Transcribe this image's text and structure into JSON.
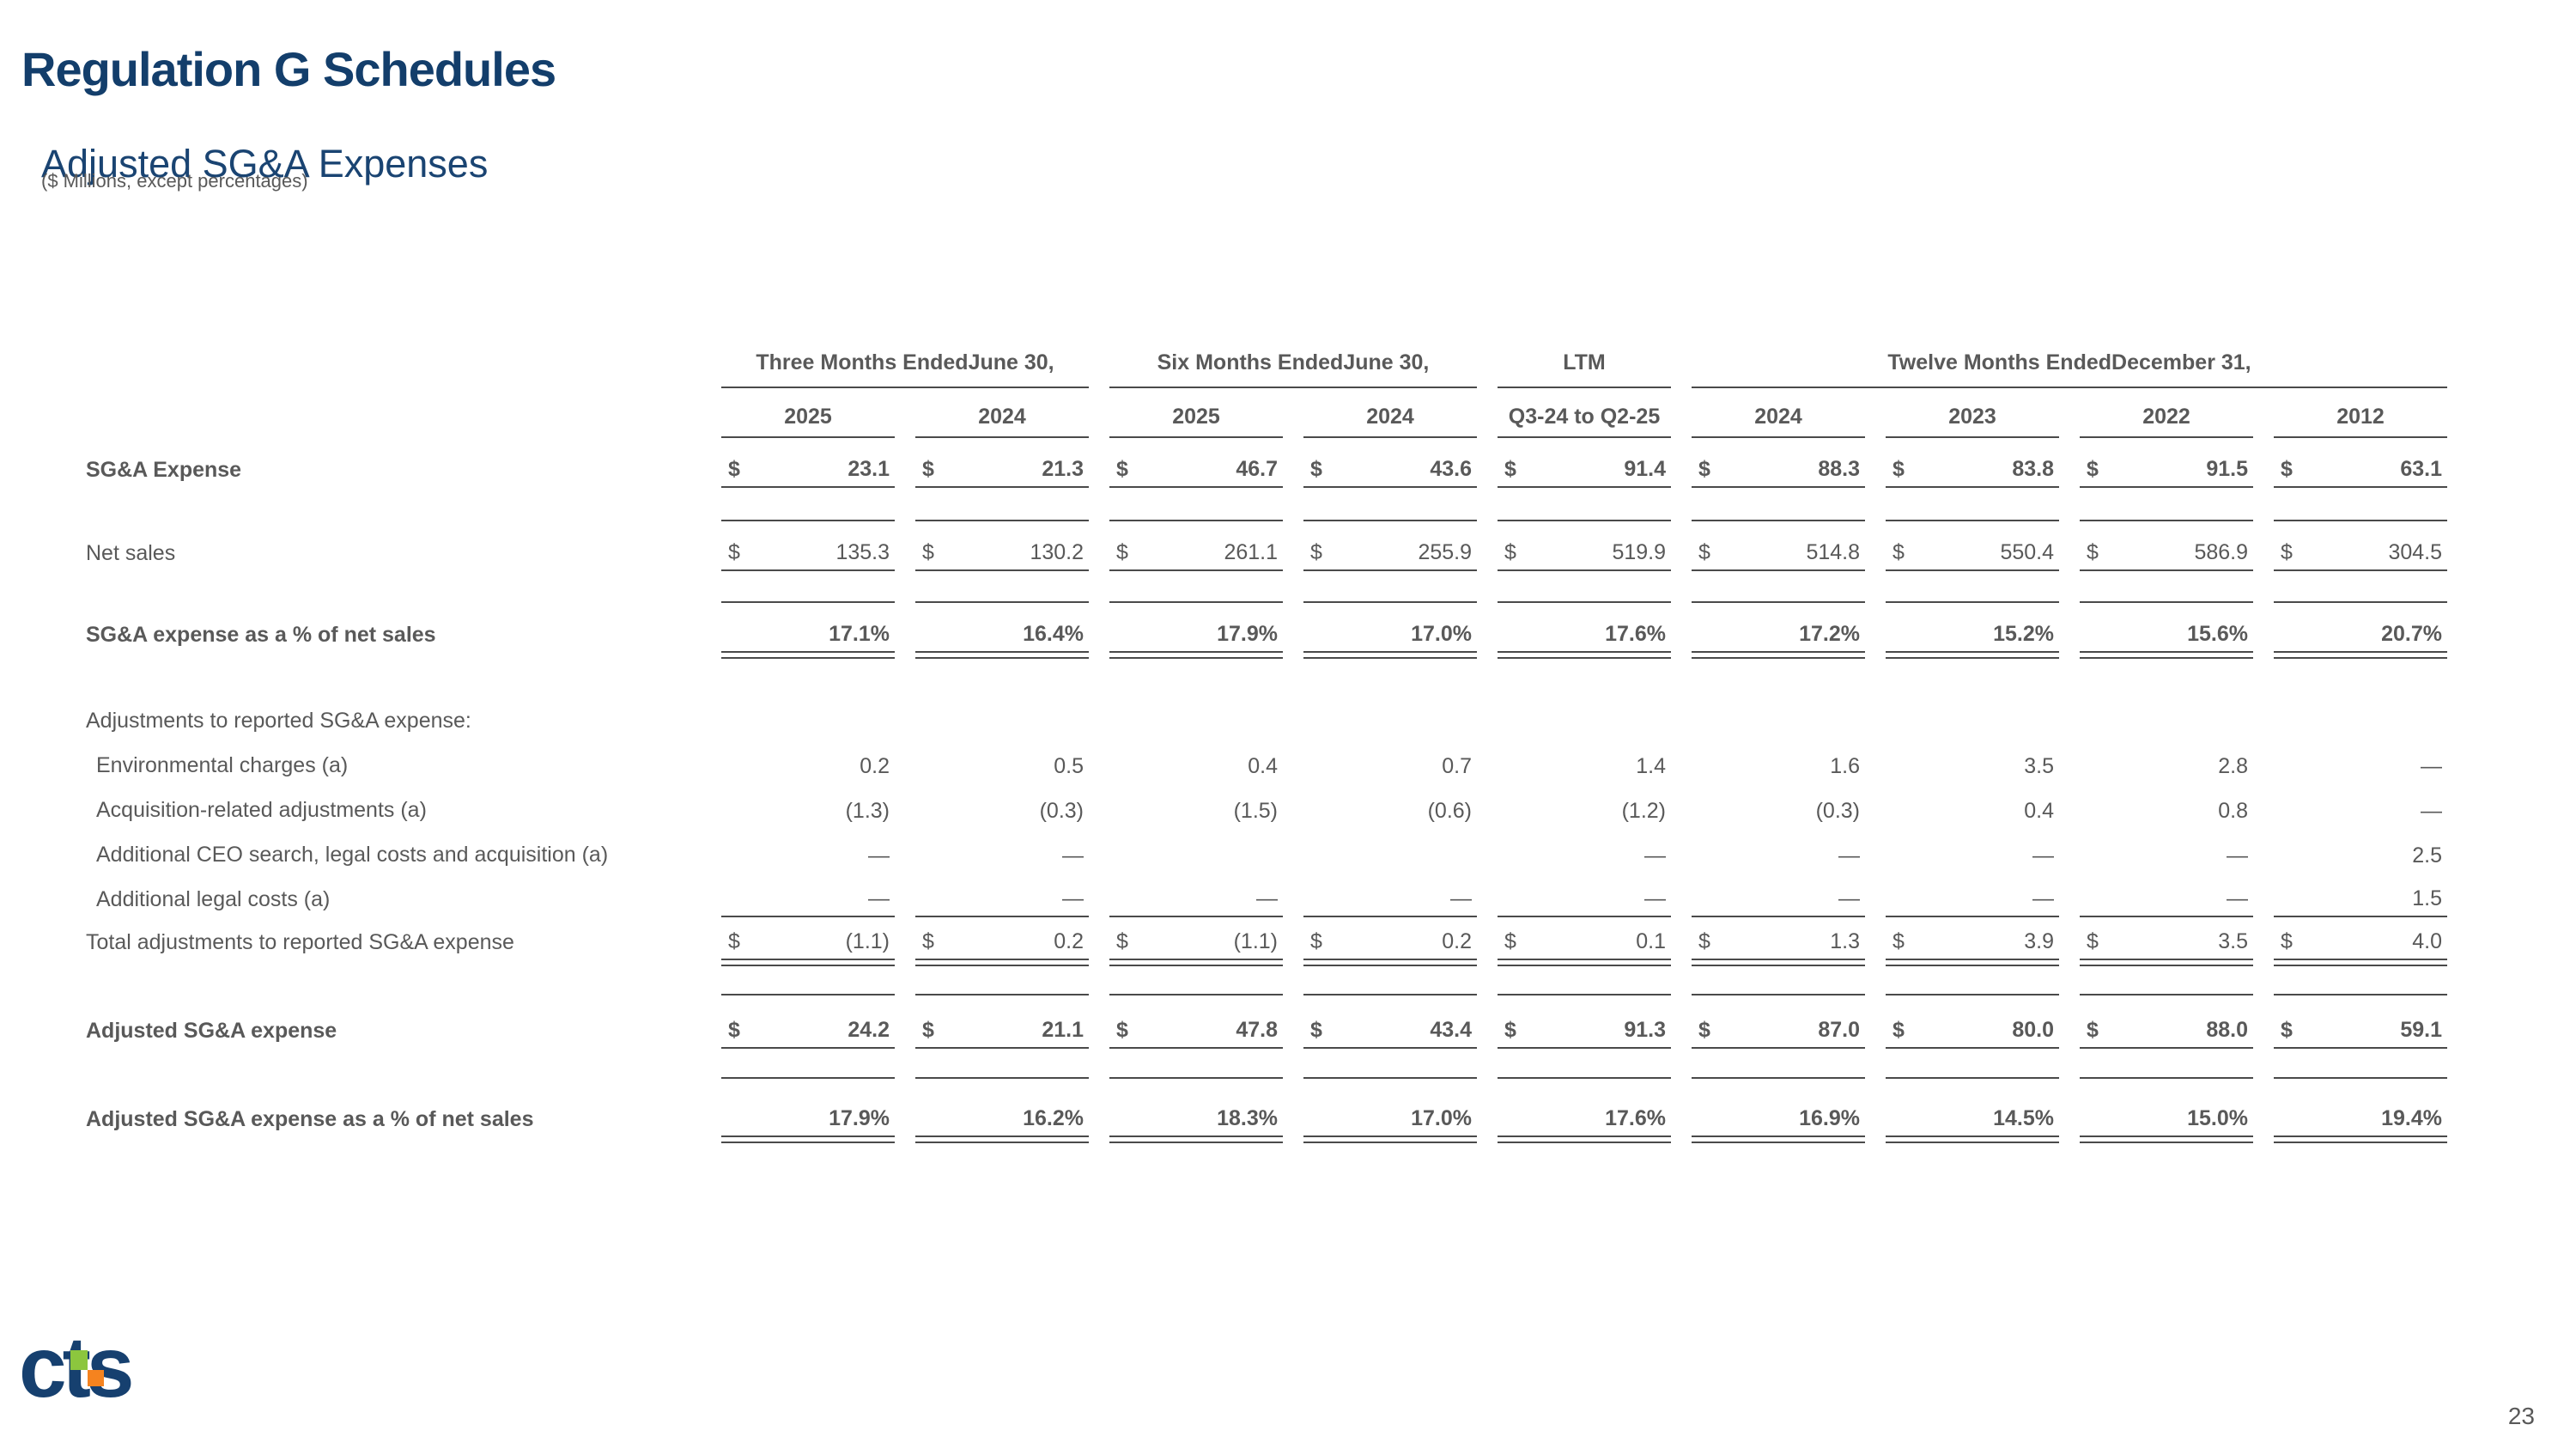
{
  "page": {
    "title": "Regulation G Schedules",
    "subtitle": "Adjusted SG&A Expenses",
    "caption": "($ Millions, except percentages)",
    "page_number": "23",
    "logo_text": "cts"
  },
  "colors": {
    "navy": "#16406f",
    "text_gray": "#595959",
    "line": "#4a4a4a",
    "logo_green": "#8cc63e",
    "logo_orange": "#f5831f"
  },
  "table": {
    "col_groups": [
      {
        "label": "Three Months Ended\nJune 30,",
        "span": 2
      },
      {
        "label": "Six Months Ended\nJune 30,",
        "span": 2
      },
      {
        "label": "LTM",
        "span": 1
      },
      {
        "label": "Twelve Months Ended\nDecember 31,",
        "span": 4
      }
    ],
    "columns": [
      "2025",
      "2024",
      "2025",
      "2024",
      "Q3-24 to Q2-25",
      "2024",
      "2023",
      "2022",
      "2012"
    ],
    "rows": [
      {
        "label": "SG&A Expense",
        "bold": true,
        "dollar": true,
        "underline": "single",
        "values": [
          "23.1",
          "21.3",
          "46.7",
          "43.6",
          "91.4",
          "88.3",
          "83.8",
          "91.5",
          "63.1"
        ]
      },
      {
        "label": "Net sales",
        "bold": false,
        "dollar": true,
        "underline": "single",
        "values": [
          "135.3",
          "130.2",
          "261.1",
          "255.9",
          "519.9",
          "514.8",
          "550.4",
          "586.9",
          "304.5"
        ]
      },
      {
        "label": "SG&A expense as a % of net sales",
        "bold": true,
        "dollar": false,
        "underline": "double",
        "values": [
          "17.1%",
          "16.4%",
          "17.9%",
          "17.0%",
          "17.6%",
          "17.2%",
          "15.2%",
          "15.6%",
          "20.7%"
        ]
      },
      {
        "label": "Adjustments to reported SG&A expense:",
        "section": true,
        "values": []
      },
      {
        "label": "Environmental charges (a)",
        "indent": true,
        "values": [
          "0.2",
          "0.5",
          "0.4",
          "0.7",
          "1.4",
          "1.6",
          "3.5",
          "2.8",
          "—"
        ]
      },
      {
        "label": "Acquisition-related adjustments (a)",
        "indent": true,
        "values": [
          "(1.3)",
          "(0.3)",
          "(1.5)",
          "(0.6)",
          "(1.2)",
          "(0.3)",
          "0.4",
          "0.8",
          "—"
        ]
      },
      {
        "label": "Additional CEO search, legal costs and acquisition (a)",
        "indent": true,
        "values": [
          "—",
          "—",
          "",
          "",
          "—",
          "—",
          "—",
          "—",
          "2.5"
        ]
      },
      {
        "label": "Additional legal costs (a)",
        "indent": true,
        "underline": "single",
        "values": [
          "—",
          "—",
          "—",
          "—",
          "—",
          "—",
          "—",
          "—",
          "1.5"
        ]
      },
      {
        "label": "Total adjustments to reported SG&A expense",
        "dollar": true,
        "underline": "double",
        "values": [
          "(1.1)",
          "0.2",
          "(1.1)",
          "0.2",
          "0.1",
          "1.3",
          "3.9",
          "3.5",
          "4.0"
        ]
      },
      {
        "label": "Adjusted SG&A expense",
        "bold": true,
        "dollar": true,
        "underline": "single",
        "values": [
          "24.2",
          "21.1",
          "47.8",
          "43.4",
          "91.3",
          "87.0",
          "80.0",
          "88.0",
          "59.1"
        ]
      },
      {
        "label": "Adjusted SG&A expense as a % of net sales",
        "bold": true,
        "underline": "double",
        "values": [
          "17.9%",
          "16.2%",
          "18.3%",
          "17.0%",
          "17.6%",
          "16.9%",
          "14.5%",
          "15.0%",
          "19.4%"
        ]
      }
    ]
  }
}
